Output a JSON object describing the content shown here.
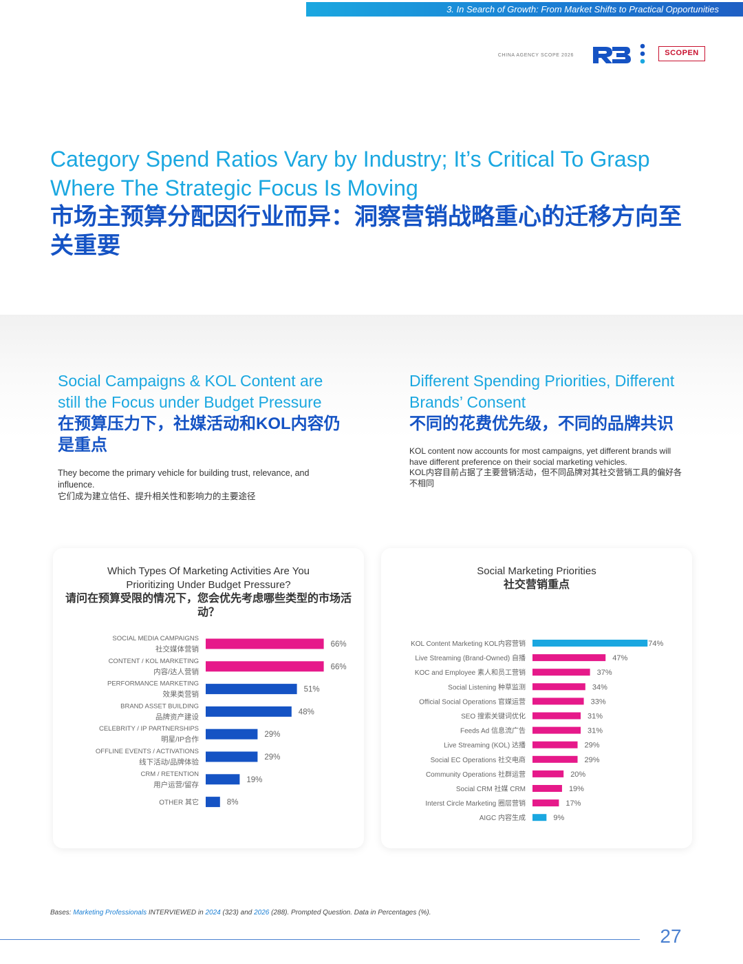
{
  "header": {
    "section_label": "3. In Search of Growth: From Market Shifts to Practical Opportunities",
    "report_name": "CHINA AGENCY SCOPE 2026",
    "logo_r3": "R3",
    "logo_scopen": "SCOPEN"
  },
  "title": {
    "en": "Category Spend Ratios Vary by Industry; It’s Critical To Grasp Where The Strategic Focus Is Moving",
    "zh": "市场主预算分配因行业而异：洞察营销战略重心的迁移方向至关重要"
  },
  "left_section": {
    "heading_en": "Social Campaigns & KOL Content are still the Focus under Budget Pressure",
    "heading_zh": "在预算压力下，社媒活动和KOL内容仍是重点",
    "desc_en": "They become the primary vehicle for building trust, relevance, and influence.",
    "desc_zh": "它们成为建立信任、提升相关性和影响力的主要途径"
  },
  "right_section": {
    "heading_en": "Different Spending Priorities, Different Brands’ Consent",
    "heading_zh": "不同的花费优先级，不同的品牌共识",
    "desc_en": "KOL content now accounts for most campaigns, yet different brands will have different preference on their social marketing vehicles.",
    "desc_zh": "KOL内容目前占据了主要营销活动，但不同品牌对其社交营销工具的偏好各不相同"
  },
  "colors": {
    "pink": "#e6198a",
    "blue": "#1553c4",
    "cyan": "#1aa7e0"
  },
  "chart_data": [
    {
      "type": "bar",
      "orientation": "horizontal",
      "title": "Which Types Of Marketing Activities Are You Prioritizing Under Budget Pressure?",
      "title_zh": "请问在预算受限的情况下，您会优先考虑哪些类型的市场活动？",
      "unit": "%",
      "bars": [
        {
          "label_en": "SOCIAL MEDIA CAMPAIGNS",
          "label_zh": "社交媒体营销",
          "value": 66,
          "display": "66%",
          "color": "#e6198a"
        },
        {
          "label_en": "CONTENT / KOL MARKETING",
          "label_zh": "内容/达人营销",
          "value": 66,
          "display": "66%",
          "color": "#e6198a"
        },
        {
          "label_en": "PERFORMANCE MARKETING",
          "label_zh": "效果类营销",
          "value": 51,
          "display": "51%",
          "color": "#1553c4"
        },
        {
          "label_en": "BRAND ASSET BUILDING",
          "label_zh": "品牌资产建设",
          "value": 48,
          "display": "48%",
          "color": "#1553c4"
        },
        {
          "label_en": "CELEBRITY / IP PARTNERSHIPS",
          "label_zh": "明星/IP合作",
          "value": 29,
          "display": "29%",
          "color": "#1553c4"
        },
        {
          "label_en": "OFFLINE EVENTS / ACTIVATIONS",
          "label_zh": "线下活动/品牌体验",
          "value": 29,
          "display": "29%",
          "color": "#1553c4"
        },
        {
          "label_en": "CRM / RETENTION",
          "label_zh": "用户运营/留存",
          "value": 19,
          "display": "19%",
          "color": "#1553c4"
        },
        {
          "label_en": "OTHER",
          "label_zh": "其它",
          "value": 8,
          "display": "8%",
          "color": "#1553c4"
        }
      ]
    },
    {
      "type": "bar",
      "orientation": "horizontal",
      "title": "Social Marketing Priorities",
      "title_zh": "社交营销重点",
      "unit": "%",
      "bars": [
        {
          "label": "KOL Content Marketing KOL内容营销",
          "value": 74,
          "display": "74%",
          "color": "#1aa7e0"
        },
        {
          "label": "Live Streaming (Brand-Owned) 自播",
          "value": 47,
          "display": "47%",
          "color": "#e6198a"
        },
        {
          "label": "KOC and Employee 素人和员工营销",
          "value": 37,
          "display": "37%",
          "color": "#e6198a"
        },
        {
          "label": "Social Listening 种草监测",
          "value": 34,
          "display": "34%",
          "color": "#e6198a"
        },
        {
          "label": "Official Social Operations 官媒运营",
          "value": 33,
          "display": "33%",
          "color": "#e6198a"
        },
        {
          "label": "SEO 搜索关键词优化",
          "value": 31,
          "display": "31%",
          "color": "#e6198a"
        },
        {
          "label": "Feeds Ad 信息流广告",
          "value": 31,
          "display": "31%",
          "color": "#e6198a"
        },
        {
          "label": "Live Streaming (KOL) 达播",
          "value": 29,
          "display": "29%",
          "color": "#e6198a"
        },
        {
          "label": "Social EC Operations 社交电商",
          "value": 29,
          "display": "29%",
          "color": "#e6198a"
        },
        {
          "label": "Community Operations 社群运营",
          "value": 20,
          "display": "20%",
          "color": "#e6198a"
        },
        {
          "label": "Social CRM 社媒 CRM",
          "value": 19,
          "display": "19%",
          "color": "#e6198a"
        },
        {
          "label": "Interst Circle Marketing 圈层营销",
          "value": 17,
          "display": "17%",
          "color": "#e6198a"
        },
        {
          "label": "AIGC 内容生成",
          "value": 9,
          "display": "9%",
          "color": "#1aa7e0"
        }
      ]
    }
  ],
  "footer": {
    "bases_prefix": "Bases:",
    "bases_group": "Marketing Professionals",
    "bases_interviewed": "INTERVIEWED in",
    "year1": "2024",
    "n1": "(323) and",
    "year2": "2026",
    "n2": "(288). Prompted Question. Data in Percentages (%).",
    "page_number": "27"
  }
}
